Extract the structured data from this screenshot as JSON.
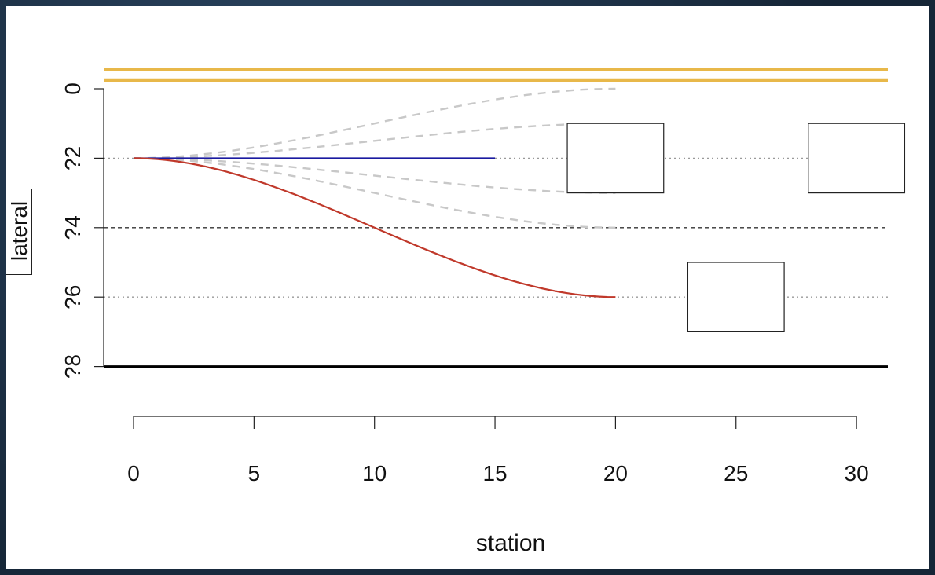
{
  "chart_data": {
    "type": "line",
    "xlabel": "station",
    "ylabel": "lateral",
    "xlim": [
      -1,
      31
    ],
    "ylim": [
      -8,
      0.5
    ],
    "x_ticks": [
      0,
      5,
      10,
      15,
      20,
      25,
      30
    ],
    "y_ticks": [
      {
        "value": 0,
        "label": "0"
      },
      {
        "value": -2,
        "label": "?2"
      },
      {
        "value": -4,
        "label": "?4"
      },
      {
        "value": -6,
        "label": "?6"
      },
      {
        "value": -8,
        "label": "?8"
      }
    ],
    "boundaries": [
      {
        "kind": "road-edge-top",
        "y": [
          0.25,
          0.55
        ],
        "color": "#e8b84a"
      },
      {
        "kind": "road-edge-bottom",
        "y": -8,
        "color": "#000000"
      }
    ],
    "lane_markings": [
      {
        "y": -2,
        "style": "dotted",
        "color": "#999999"
      },
      {
        "y": -4,
        "style": "dashed",
        "color": "#333333"
      },
      {
        "y": -6,
        "style": "dotted",
        "color": "#999999"
      }
    ],
    "series": [
      {
        "kind": "reference-path",
        "color": "#1a1aa0",
        "x": [
          0,
          15
        ],
        "y": [
          -2,
          -2
        ]
      },
      {
        "kind": "selected-path",
        "color": "#c0392b",
        "x": [
          0,
          20
        ],
        "y_start": -2,
        "y_end": -6
      },
      {
        "kind": "candidate-path",
        "color": "#c8c8c8",
        "x": [
          0,
          20
        ],
        "y_start": -2,
        "y_end": 0
      },
      {
        "kind": "candidate-path",
        "color": "#c8c8c8",
        "x": [
          0,
          20
        ],
        "y_start": -2,
        "y_end": -1
      },
      {
        "kind": "candidate-path",
        "color": "#c8c8c8",
        "x": [
          0,
          20
        ],
        "y_start": -2,
        "y_end": -3
      },
      {
        "kind": "candidate-path",
        "color": "#c8c8c8",
        "x": [
          0,
          20
        ],
        "y_start": -2,
        "y_end": -4
      }
    ],
    "obstacles": [
      {
        "x": [
          18,
          22
        ],
        "y": [
          -3,
          -1
        ]
      },
      {
        "x": [
          23,
          27
        ],
        "y": [
          -7,
          -5
        ]
      },
      {
        "x": [
          28,
          32
        ],
        "y": [
          -3,
          -1
        ]
      }
    ]
  }
}
